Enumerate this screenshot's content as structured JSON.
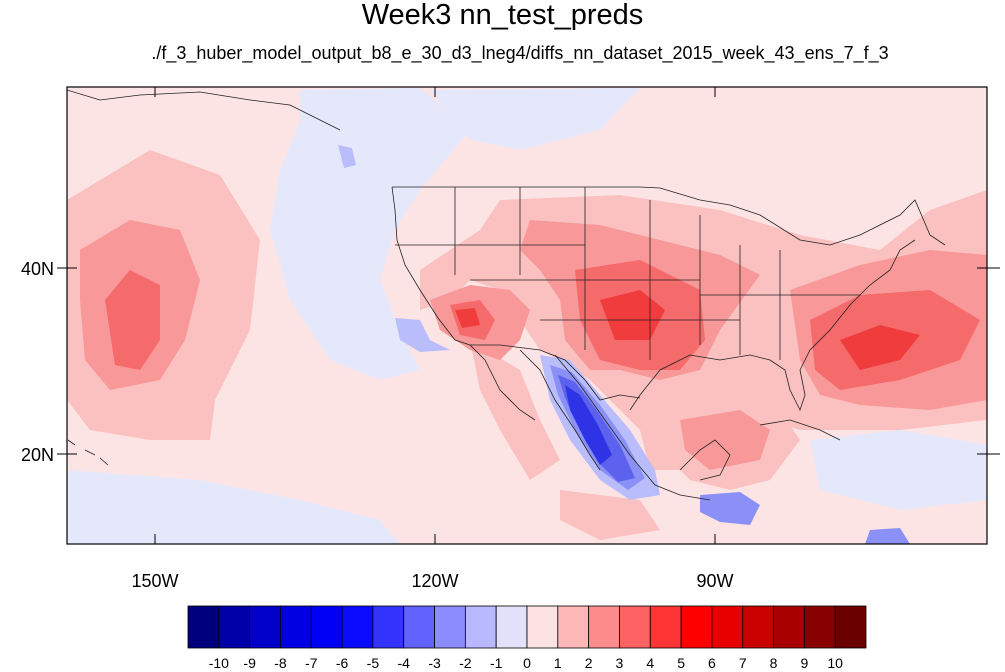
{
  "title": "Week3 nn_test_preds",
  "subtitle": "./f_3_huber_model_output_b8_e_30_d3_lneg4/diffs_nn_dataset_2015_week_43_ens_7_f_3",
  "map": {
    "lon_range": [
      -159,
      -59
    ],
    "lat_range": [
      10,
      58.5
    ],
    "lon_labels": [
      "150W",
      "120W",
      "90W"
    ],
    "lat_labels": [
      "20N",
      "40N"
    ]
  },
  "colorbar": {
    "levels": [
      "-10",
      "-9",
      "-8",
      "-7",
      "-6",
      "-5",
      "-4",
      "-3",
      "-2",
      "-1",
      "0",
      "1",
      "2",
      "3",
      "4",
      "5",
      "6",
      "7",
      "8",
      "9",
      "10"
    ],
    "colors": [
      "#00007f",
      "#0000a8",
      "#0000c8",
      "#0000e2",
      "#0000f6",
      "#0a0aff",
      "#3434ff",
      "#6262ff",
      "#8c8cff",
      "#b8b8ff",
      "#e2e2fa",
      "#fde2e2",
      "#ffb8b8",
      "#ff8c8c",
      "#ff6262",
      "#ff3434",
      "#ff0000",
      "#e60000",
      "#c80000",
      "#a80000",
      "#880000",
      "#6a0000"
    ]
  },
  "colors": {
    "neutral_neg": "#e5e8fb",
    "neutral_pos": "#fde4e4",
    "pos1": "#fbc0c0",
    "pos2": "#f89898",
    "pos3": "#f56a6a",
    "pos4": "#f03c3c",
    "neg1": "#b9bdfb",
    "neg2": "#8b90f6",
    "neg3": "#5c62ee",
    "neg4": "#2e34e6"
  }
}
